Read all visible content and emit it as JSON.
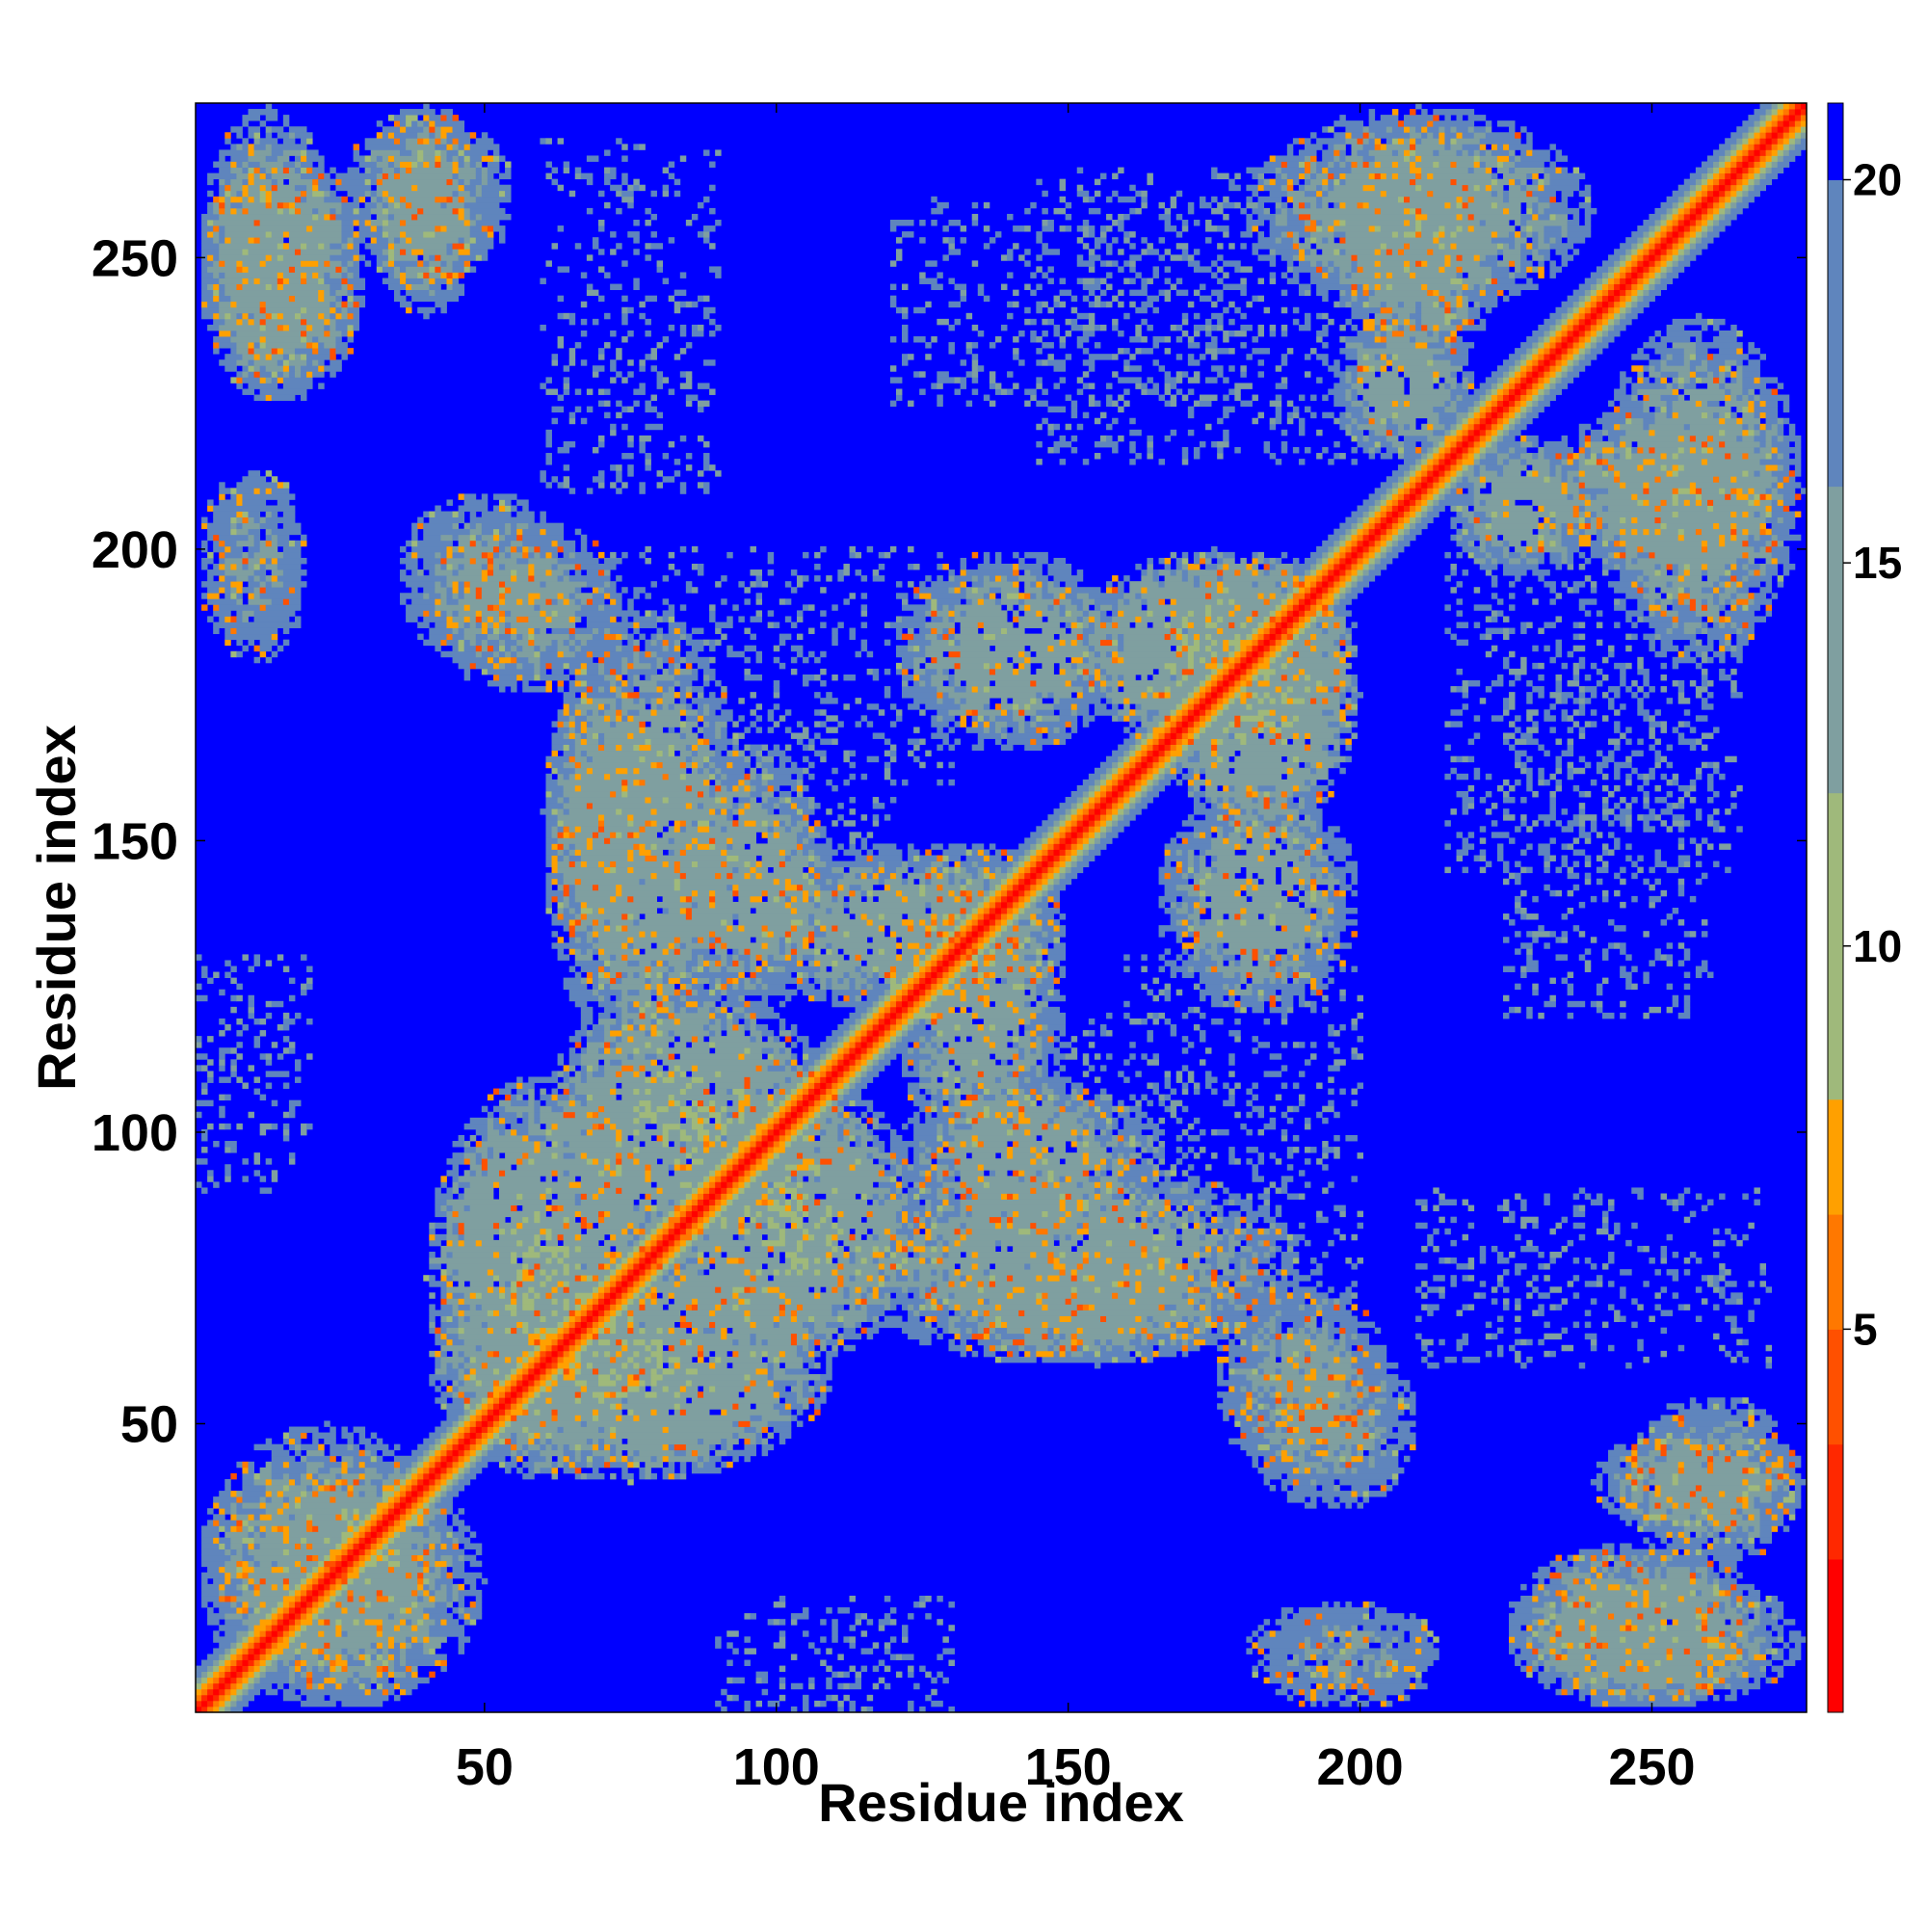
{
  "chart_data": {
    "type": "heatmap",
    "title": "",
    "xlabel": "Residue index",
    "ylabel": "Residue index",
    "n_residues": 276,
    "xlim": [
      1,
      276
    ],
    "ylim": [
      1,
      276
    ],
    "x_ticks": [
      50,
      100,
      150,
      200,
      250
    ],
    "y_ticks": [
      50,
      100,
      150,
      200,
      250
    ],
    "colorbar": {
      "ticks": [
        5,
        10,
        15,
        20
      ],
      "range": [
        0,
        21
      ],
      "colors": [
        "#ff0000",
        "#ff2800",
        "#ff5000",
        "#ff7800",
        "#ffa000",
        "#9fb97b",
        "#7f9fa0",
        "#5f85bd",
        "#0000ff"
      ],
      "boundaries": [
        0,
        2,
        3.5,
        5,
        6.5,
        8,
        12,
        16,
        20,
        21
      ]
    },
    "background_value": 21,
    "diagonal_profile": [
      {
        "offset": 0,
        "value": 1
      },
      {
        "offset": 1,
        "value": 3
      },
      {
        "offset": 2,
        "value": 5.5
      },
      {
        "offset": 3,
        "value": 7
      },
      {
        "offset": 4,
        "value": 10
      },
      {
        "offset": 5,
        "value": 13
      },
      {
        "offset": 6,
        "value": 16
      },
      {
        "offset": 7,
        "value": 18
      }
    ],
    "contact_regions": [
      {
        "x": [
          1,
          45
        ],
        "y": [
          1,
          50
        ],
        "value": 15
      },
      {
        "x": [
          1,
          25
        ],
        "y": [
          225,
          276
        ],
        "value": 15
      },
      {
        "x": [
          25,
          55
        ],
        "y": [
          245,
          276
        ],
        "value": 16
      },
      {
        "x": [
          35,
          65
        ],
        "y": [
          180,
          210
        ],
        "value": 16
      },
      {
        "x": [
          40,
          80
        ],
        "y": [
          40,
          110
        ],
        "value": 14
      },
      {
        "x": [
          60,
          95
        ],
        "y": [
          110,
          190
        ],
        "value": 15
      },
      {
        "x": [
          80,
          125
        ],
        "y": [
          60,
          110
        ],
        "value": 14
      },
      {
        "x": [
          95,
          150
        ],
        "y": [
          120,
          150
        ],
        "value": 15
      },
      {
        "x": [
          120,
          165
        ],
        "y": [
          80,
          110
        ],
        "value": 15
      },
      {
        "x": [
          130,
          180
        ],
        "y": [
          60,
          80
        ],
        "value": 15
      },
      {
        "x": [
          150,
          200
        ],
        "y": [
          165,
          200
        ],
        "value": 14
      },
      {
        "x": [
          165,
          200
        ],
        "y": [
          120,
          160
        ],
        "value": 15
      },
      {
        "x": [
          175,
          205
        ],
        "y": [
          40,
          75
        ],
        "value": 16
      },
      {
        "x": [
          195,
          225
        ],
        "y": [
          230,
          276
        ],
        "value": 15
      },
      {
        "x": [
          215,
          240
        ],
        "y": [
          195,
          220
        ],
        "value": 15
      },
      {
        "x": [
          240,
          276
        ],
        "y": [
          180,
          240
        ],
        "value": 15
      },
      {
        "x": [
          240,
          276
        ],
        "y": [
          30,
          50
        ],
        "value": 15
      },
      {
        "x": [
          225,
          270
        ],
        "y": [
          1,
          30
        ],
        "value": 15
      },
      {
        "x": [
          180,
          215
        ],
        "y": [
          1,
          20
        ],
        "value": 17
      }
    ],
    "sparse_regions": [
      {
        "x": [
          145,
          215
        ],
        "y": [
          215,
          265
        ]
      },
      {
        "x": [
          135,
          170
        ],
        "y": [
          70,
          120
        ]
      },
      {
        "x": [
          70,
          130
        ],
        "y": [
          160,
          200
        ]
      },
      {
        "x": [
          90,
          130
        ],
        "y": [
          1,
          20
        ]
      },
      {
        "x": [
          210,
          270
        ],
        "y": [
          60,
          90
        ]
      },
      {
        "x": [
          225,
          260
        ],
        "y": [
          120,
          180
        ]
      }
    ]
  }
}
